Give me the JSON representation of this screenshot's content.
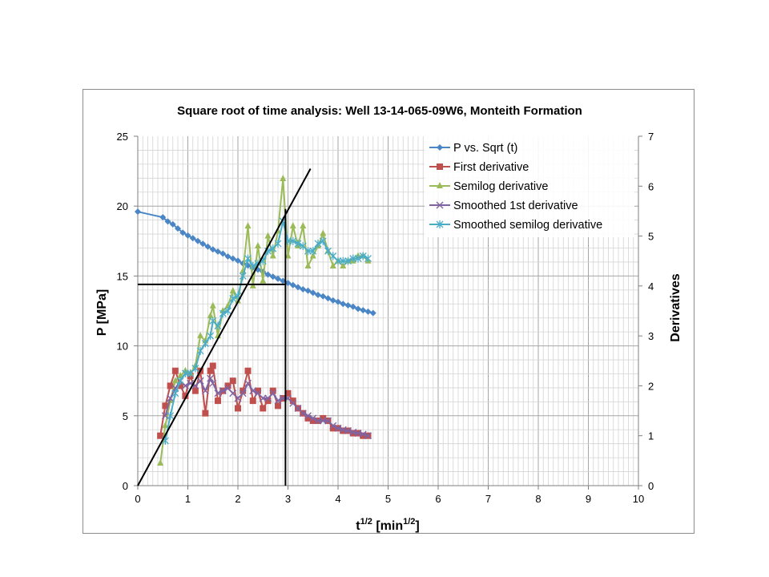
{
  "chart_data": {
    "type": "line",
    "title": "Square root of time analysis: Well 13-14-065-09W6, Monteith Formation",
    "xlabel_base": "t",
    "xlabel_sup": "1/2",
    "xlabel_rest": " [min",
    "xlabel_sup2": "1/2",
    "xlabel_end": "]",
    "ylabel": "P [MPa]",
    "y2label": "Derivatives",
    "xlim": [
      0,
      10
    ],
    "ylim": [
      0,
      25
    ],
    "y2lim": [
      0,
      7
    ],
    "xticks": [
      "0",
      "1",
      "2",
      "3",
      "4",
      "5",
      "6",
      "7",
      "8",
      "9",
      "10"
    ],
    "yticks": [
      "0",
      "5",
      "10",
      "15",
      "20",
      "25"
    ],
    "y2ticks": [
      "0",
      "1",
      "2",
      "3",
      "4",
      "5",
      "6",
      "7"
    ],
    "grid": true,
    "legend_position": "top-right",
    "colors": {
      "pressure": "#4a86c5",
      "first_derivative": "#c0504d",
      "semilog_derivative": "#9bbb59",
      "smoothed_first": "#8064a2",
      "smoothed_semilog": "#4bacc6",
      "annotation": "#000000"
    },
    "series": [
      {
        "name": "P vs. Sqrt (t)",
        "axis": "left",
        "marker": "diamond",
        "x": [
          0.0,
          0.5,
          0.6,
          0.7,
          0.8,
          0.9,
          1.0,
          1.1,
          1.2,
          1.3,
          1.4,
          1.5,
          1.6,
          1.7,
          1.8,
          1.9,
          2.0,
          2.1,
          2.2,
          2.3,
          2.4,
          2.5,
          2.6,
          2.7,
          2.8,
          2.9,
          3.0,
          3.1,
          3.2,
          3.3,
          3.4,
          3.5,
          3.6,
          3.7,
          3.8,
          3.9,
          4.0,
          4.1,
          4.2,
          4.3,
          4.4,
          4.5,
          4.6,
          4.7
        ],
        "y": [
          19.6,
          19.2,
          18.9,
          18.7,
          18.4,
          18.1,
          17.9,
          17.7,
          17.5,
          17.3,
          17.1,
          16.9,
          16.75,
          16.6,
          16.4,
          16.25,
          16.1,
          15.9,
          15.75,
          15.6,
          15.45,
          15.3,
          15.1,
          14.95,
          14.8,
          14.65,
          14.5,
          14.35,
          14.2,
          14.05,
          13.95,
          13.8,
          13.65,
          13.55,
          13.4,
          13.25,
          13.15,
          13.0,
          12.9,
          12.8,
          12.65,
          12.55,
          12.45,
          12.35
        ]
      },
      {
        "name": "First derivative",
        "axis": "right",
        "marker": "square",
        "x": [
          0.45,
          0.55,
          0.65,
          0.75,
          0.85,
          0.95,
          1.05,
          1.15,
          1.25,
          1.35,
          1.45,
          1.5,
          1.6,
          1.7,
          1.8,
          1.9,
          2.0,
          2.1,
          2.2,
          2.3,
          2.4,
          2.5,
          2.6,
          2.7,
          2.8,
          2.9,
          3.0,
          3.1,
          3.2,
          3.3,
          3.4,
          3.5,
          3.6,
          3.7,
          3.8,
          3.9,
          4.0,
          4.1,
          4.2,
          4.3,
          4.4,
          4.5,
          4.6
        ],
        "y": [
          1.0,
          1.6,
          2.0,
          2.3,
          2.0,
          1.8,
          2.2,
          1.9,
          2.3,
          1.45,
          2.3,
          2.4,
          1.7,
          1.9,
          2.0,
          2.1,
          1.55,
          1.9,
          2.3,
          1.7,
          1.9,
          1.55,
          1.7,
          1.9,
          1.6,
          1.75,
          1.85,
          1.7,
          1.55,
          1.45,
          1.35,
          1.3,
          1.3,
          1.35,
          1.3,
          1.15,
          1.15,
          1.1,
          1.1,
          1.05,
          1.05,
          1.0,
          1.0
        ]
      },
      {
        "name": "Semilog derivative",
        "axis": "right",
        "marker": "triangle",
        "x": [
          0.45,
          0.55,
          0.65,
          0.75,
          0.85,
          0.95,
          1.05,
          1.15,
          1.25,
          1.35,
          1.45,
          1.5,
          1.6,
          1.7,
          1.8,
          1.9,
          2.0,
          2.1,
          2.2,
          2.3,
          2.4,
          2.5,
          2.6,
          2.7,
          2.8,
          2.9,
          3.0,
          3.1,
          3.2,
          3.3,
          3.4,
          3.5,
          3.6,
          3.7,
          3.8,
          3.9,
          4.0,
          4.1,
          4.2,
          4.3,
          4.4,
          4.5,
          4.6
        ],
        "y": [
          0.45,
          1.2,
          1.7,
          2.1,
          2.2,
          2.3,
          2.25,
          2.4,
          3.0,
          2.9,
          3.4,
          3.6,
          3.0,
          3.5,
          3.6,
          3.9,
          3.7,
          4.3,
          5.2,
          4.0,
          4.8,
          4.1,
          5.0,
          4.6,
          5.1,
          6.15,
          4.6,
          5.2,
          4.8,
          5.2,
          4.4,
          4.6,
          4.8,
          5.05,
          4.7,
          4.4,
          4.5,
          4.4,
          4.5,
          4.5,
          4.6,
          4.6,
          4.5
        ]
      },
      {
        "name": "Smoothed 1st derivative",
        "axis": "right",
        "marker": "x",
        "x": [
          0.55,
          0.65,
          0.75,
          0.85,
          0.95,
          1.05,
          1.15,
          1.25,
          1.35,
          1.45,
          1.5,
          1.6,
          1.7,
          1.8,
          1.9,
          2.0,
          2.1,
          2.2,
          2.3,
          2.4,
          2.5,
          2.6,
          2.7,
          2.8,
          2.9,
          3.0,
          3.1,
          3.2,
          3.3,
          3.4,
          3.5,
          3.6,
          3.7,
          3.8,
          3.9,
          4.0,
          4.1,
          4.2,
          4.3,
          4.4,
          4.5,
          4.6
        ],
        "y": [
          1.4,
          1.75,
          1.95,
          2.1,
          2.0,
          2.05,
          2.0,
          2.1,
          1.9,
          2.15,
          2.05,
          1.85,
          1.9,
          1.95,
          1.85,
          1.75,
          1.85,
          2.05,
          1.9,
          1.85,
          1.75,
          1.75,
          1.85,
          1.7,
          1.75,
          1.75,
          1.65,
          1.55,
          1.45,
          1.4,
          1.35,
          1.3,
          1.3,
          1.3,
          1.2,
          1.15,
          1.12,
          1.1,
          1.07,
          1.05,
          1.03,
          1.0
        ]
      },
      {
        "name": "Smoothed semilog derivative",
        "axis": "right",
        "marker": "star",
        "x": [
          0.55,
          0.65,
          0.75,
          0.85,
          0.95,
          1.05,
          1.15,
          1.25,
          1.35,
          1.45,
          1.5,
          1.6,
          1.7,
          1.8,
          1.9,
          2.0,
          2.1,
          2.2,
          2.3,
          2.4,
          2.5,
          2.6,
          2.7,
          2.8,
          2.9,
          3.0,
          3.1,
          3.2,
          3.3,
          3.4,
          3.5,
          3.6,
          3.7,
          3.8,
          3.9,
          4.0,
          4.1,
          4.2,
          4.3,
          4.4,
          4.5,
          4.6
        ],
        "y": [
          0.9,
          1.4,
          1.85,
          2.1,
          2.25,
          2.25,
          2.35,
          2.7,
          2.85,
          3.0,
          3.3,
          3.2,
          3.45,
          3.5,
          3.75,
          3.8,
          4.2,
          4.55,
          4.4,
          4.45,
          4.5,
          4.7,
          4.75,
          4.85,
          5.3,
          4.9,
          4.9,
          4.85,
          4.8,
          4.7,
          4.7,
          4.85,
          4.9,
          4.7,
          4.6,
          4.5,
          4.5,
          4.5,
          4.55,
          4.55,
          4.6,
          4.55
        ]
      }
    ],
    "annotations": {
      "tangent_line": {
        "x": [
          0.0,
          3.45
        ],
        "y_right": [
          0.0,
          6.35
        ]
      },
      "vertical_line": {
        "x": [
          2.95,
          2.95
        ],
        "y_left": [
          0.0,
          19.8
        ]
      },
      "horizontal_line": {
        "x": [
          0.0,
          2.95
        ],
        "y_left": [
          14.4,
          14.4
        ]
      }
    }
  }
}
